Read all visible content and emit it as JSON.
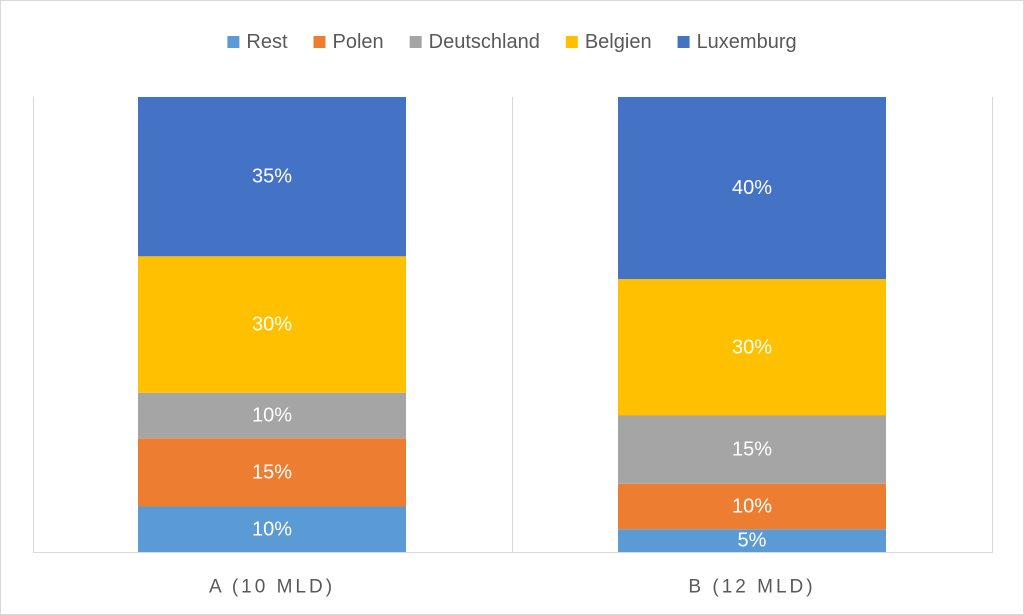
{
  "chart_data": {
    "type": "bar",
    "stacked": true,
    "categories": [
      "A (10 MLD)",
      "B (12 MLD)"
    ],
    "series": [
      {
        "name": "Rest",
        "color": "#5B9BD5",
        "values": [
          10,
          5
        ]
      },
      {
        "name": "Polen",
        "color": "#ED7D31",
        "values": [
          15,
          10
        ]
      },
      {
        "name": "Deutschland",
        "color": "#A5A5A5",
        "values": [
          10,
          15
        ]
      },
      {
        "name": "Belgien",
        "color": "#FFC000",
        "values": [
          30,
          30
        ]
      },
      {
        "name": "Luxemburg",
        "color": "#4472C4",
        "values": [
          35,
          40
        ]
      }
    ],
    "data_labels": [
      [
        "10%",
        "5%"
      ],
      [
        "15%",
        "10%"
      ],
      [
        "10%",
        "15%"
      ],
      [
        "30%",
        "30%"
      ],
      [
        "35%",
        "40%"
      ]
    ],
    "legend_order": [
      0,
      1,
      2,
      3,
      4
    ],
    "ylim": [
      0,
      100
    ],
    "legend_position": "top",
    "grid": false
  }
}
